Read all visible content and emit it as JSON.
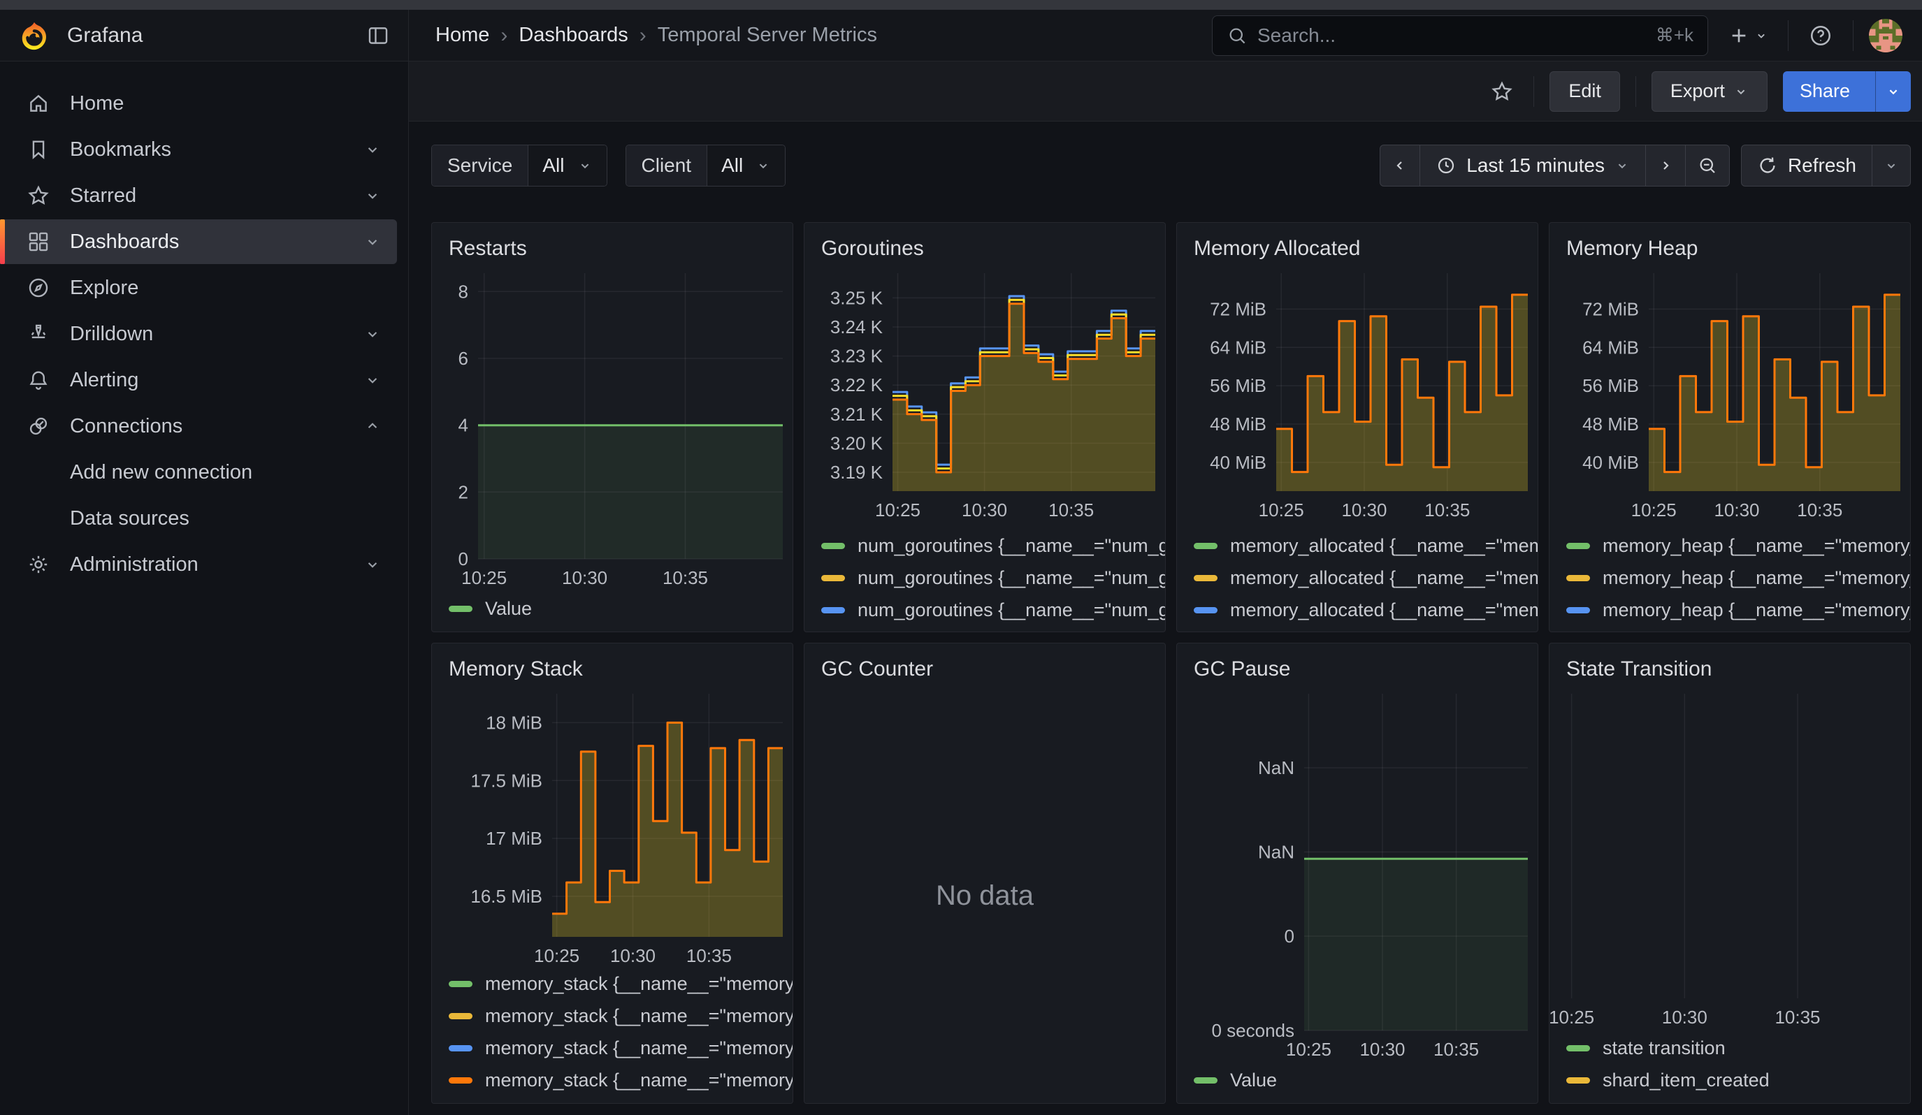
{
  "nav": {
    "brand": "Grafana",
    "breadcrumbs": [
      {
        "label": "Home",
        "current": false
      },
      {
        "label": "Dashboards",
        "current": false
      },
      {
        "label": "Temporal Server Metrics",
        "current": true
      }
    ],
    "search": {
      "placeholder": "Search...",
      "shortcut": "⌘+k"
    }
  },
  "toolbar": {
    "edit": "Edit",
    "export": "Export",
    "share": "Share"
  },
  "sidebar": {
    "items": [
      {
        "label": "Home",
        "icon": "home",
        "chevron": null,
        "active": false,
        "sub": false
      },
      {
        "label": "Bookmarks",
        "icon": "bookmark",
        "chevron": "down",
        "active": false,
        "sub": false
      },
      {
        "label": "Starred",
        "icon": "star",
        "chevron": "down",
        "active": false,
        "sub": false
      },
      {
        "label": "Dashboards",
        "icon": "apps",
        "chevron": "down",
        "active": true,
        "sub": false
      },
      {
        "label": "Explore",
        "icon": "compass",
        "chevron": null,
        "active": false,
        "sub": false
      },
      {
        "label": "Drilldown",
        "icon": "drilldown",
        "chevron": "down",
        "active": false,
        "sub": false
      },
      {
        "label": "Alerting",
        "icon": "bell",
        "chevron": "down",
        "active": false,
        "sub": false
      },
      {
        "label": "Connections",
        "icon": "plug",
        "chevron": "up",
        "active": false,
        "sub": false
      },
      {
        "label": "Add new connection",
        "icon": null,
        "chevron": null,
        "active": false,
        "sub": true
      },
      {
        "label": "Data sources",
        "icon": null,
        "chevron": null,
        "active": false,
        "sub": true
      },
      {
        "label": "Administration",
        "icon": "gear",
        "chevron": "down",
        "active": false,
        "sub": false
      }
    ]
  },
  "controls": {
    "service": {
      "label": "Service",
      "value": "All"
    },
    "client": {
      "label": "Client",
      "value": "All"
    },
    "time_range": "Last 15 minutes",
    "refresh_label": "Refresh"
  },
  "colors": {
    "green": "#73BF69",
    "yellow_line": "#FADE2A",
    "yellow_swatch": "#EAB839",
    "blue": "#5794F2",
    "orange": "#FF780A",
    "primary_blue": "#3D71D9",
    "olive_fill": "rgba(250,222,42,0.26)",
    "green_fill": "rgba(115,191,105,0.10)"
  },
  "chart_data": [
    {
      "id": "restarts",
      "title": "Restarts",
      "type": "flat",
      "flat_value": 4,
      "ylim": [
        0,
        8.55
      ],
      "yticks": [
        {
          "v": 8,
          "l": "8"
        },
        {
          "v": 6,
          "l": "6"
        },
        {
          "v": 4,
          "l": "4"
        },
        {
          "v": 2,
          "l": "2"
        },
        {
          "v": 0,
          "l": "0"
        }
      ],
      "xticks": [
        "10:25",
        "10:30",
        "10:35"
      ],
      "xfracs": [
        0.02,
        0.35,
        0.68
      ],
      "line_color": "#73BF69",
      "fill": "rgba(115,191,105,0.10)",
      "legend": [
        {
          "color": "#73BF69",
          "label": "Value"
        }
      ],
      "legend_clip": false
    },
    {
      "id": "goroutines",
      "title": "Goroutines",
      "type": "step",
      "ylim": [
        3.1835,
        3.2585
      ],
      "yticks": [
        {
          "v": 3.25,
          "l": "3.25 K"
        },
        {
          "v": 3.24,
          "l": "3.24 K"
        },
        {
          "v": 3.23,
          "l": "3.23 K"
        },
        {
          "v": 3.22,
          "l": "3.22 K"
        },
        {
          "v": 3.21,
          "l": "3.21 K"
        },
        {
          "v": 3.2,
          "l": "3.20 K"
        },
        {
          "v": 3.19,
          "l": "3.19 K"
        }
      ],
      "xticks": [
        "10:25",
        "10:30",
        "10:35"
      ],
      "xfracs": [
        0.02,
        0.35,
        0.68
      ],
      "values": [
        3.215,
        3.21,
        3.208,
        3.19,
        3.218,
        3.22,
        3.23,
        3.23,
        3.248,
        3.231,
        3.228,
        3.222,
        3.229,
        3.229,
        3.236,
        3.243,
        3.23,
        3.236
      ],
      "series": [
        {
          "color": "#5794F2",
          "offset": 0.0026
        },
        {
          "color": "#FADE2A",
          "offset": 0.0013
        },
        {
          "color": "#FF780A",
          "offset": 0
        }
      ],
      "fill": "rgba(250,222,42,0.26)",
      "legend": [
        {
          "color": "#73BF69",
          "label": "num_goroutines {__name__=\"num_go"
        },
        {
          "color": "#EAB839",
          "label": "num_goroutines {__name__=\"num_go"
        },
        {
          "color": "#5794F2",
          "label": "num_goroutines {__name__=\"num_go"
        },
        {
          "color": "#FF780A",
          "label": "num_goroutines {__name__=\"num_go"
        }
      ],
      "legend_clip": true
    },
    {
      "id": "memory_allocated",
      "title": "Memory Allocated",
      "type": "step",
      "ylim": [
        34,
        79.5
      ],
      "yticks": [
        {
          "v": 72,
          "l": "72 MiB"
        },
        {
          "v": 64,
          "l": "64 MiB"
        },
        {
          "v": 56,
          "l": "56 MiB"
        },
        {
          "v": 48,
          "l": "48 MiB"
        },
        {
          "v": 40,
          "l": "40 MiB"
        }
      ],
      "xticks": [
        "10:25",
        "10:30",
        "10:35"
      ],
      "xfracs": [
        0.02,
        0.35,
        0.68
      ],
      "values": [
        47,
        38,
        58,
        50.5,
        69.5,
        48.5,
        70.5,
        39.5,
        61.5,
        53.5,
        39,
        61,
        50.5,
        72.5,
        54,
        75
      ],
      "series": [
        {
          "color": "#FF780A",
          "offset": 0
        }
      ],
      "fill": "rgba(250,222,42,0.26)",
      "legend": [
        {
          "color": "#73BF69",
          "label": "memory_allocated {__name__=\"memo"
        },
        {
          "color": "#EAB839",
          "label": "memory_allocated {__name__=\"memo"
        },
        {
          "color": "#5794F2",
          "label": "memory_allocated {__name__=\"memo"
        },
        {
          "color": "#FF780A",
          "label": "memory_allocated {__name__=\"memo"
        }
      ],
      "legend_clip": true
    },
    {
      "id": "memory_heap",
      "title": "Memory Heap",
      "type": "step",
      "ylim": [
        34,
        79.5
      ],
      "yticks": [
        {
          "v": 72,
          "l": "72 MiB"
        },
        {
          "v": 64,
          "l": "64 MiB"
        },
        {
          "v": 56,
          "l": "56 MiB"
        },
        {
          "v": 48,
          "l": "48 MiB"
        },
        {
          "v": 40,
          "l": "40 MiB"
        }
      ],
      "xticks": [
        "10:25",
        "10:30",
        "10:35"
      ],
      "xfracs": [
        0.02,
        0.35,
        0.68
      ],
      "values": [
        47,
        38,
        58,
        50.5,
        69.5,
        48.5,
        70.5,
        39.5,
        61.5,
        53.5,
        39,
        61,
        50.5,
        72.5,
        54,
        75
      ],
      "series": [
        {
          "color": "#FF780A",
          "offset": 0
        }
      ],
      "fill": "rgba(250,222,42,0.26)",
      "legend": [
        {
          "color": "#73BF69",
          "label": "memory_heap {__name__=\"memory_h"
        },
        {
          "color": "#EAB839",
          "label": "memory_heap {__name__=\"memory_h"
        },
        {
          "color": "#5794F2",
          "label": "memory_heap {__name__=\"memory_h"
        },
        {
          "color": "#FF780A",
          "label": "memory_heap {__name__=\"memory_h"
        }
      ],
      "legend_clip": true
    },
    {
      "id": "memory_stack",
      "title": "Memory Stack",
      "type": "step",
      "ylim": [
        16.15,
        18.25
      ],
      "yticks": [
        {
          "v": 18,
          "l": "18 MiB"
        },
        {
          "v": 17.5,
          "l": "17.5 MiB"
        },
        {
          "v": 17,
          "l": "17 MiB"
        },
        {
          "v": 16.5,
          "l": "16.5 MiB"
        }
      ],
      "xticks": [
        "10:25",
        "10:30",
        "10:35"
      ],
      "xfracs": [
        0.02,
        0.35,
        0.68
      ],
      "values": [
        16.35,
        16.62,
        17.75,
        16.45,
        16.72,
        16.62,
        17.8,
        17.15,
        18.0,
        17.05,
        16.62,
        17.78,
        16.9,
        17.85,
        16.8,
        17.78
      ],
      "series": [
        {
          "color": "#FF780A",
          "offset": 0
        }
      ],
      "fill": "rgba(250,222,42,0.26)",
      "legend": [
        {
          "color": "#73BF69",
          "label": "memory_stack {__name__=\"memory_s"
        },
        {
          "color": "#EAB839",
          "label": "memory_stack {__name__=\"memory_s"
        },
        {
          "color": "#5794F2",
          "label": "memory_stack {__name__=\"memory_s"
        },
        {
          "color": "#FF780A",
          "label": "memory_stack {__name__=\"memory_s"
        }
      ],
      "legend_clip": false
    },
    {
      "id": "gc_counter",
      "title": "GC Counter",
      "type": "nodata",
      "no_data_text": "No data",
      "legend": [],
      "legend_clip": false
    },
    {
      "id": "gc_pause",
      "title": "GC Pause",
      "type": "flat-frac",
      "line_frac": 0.49,
      "yticks_frac": [
        {
          "f": 0.22,
          "l": "NaN"
        },
        {
          "f": 0.47,
          "l": "NaN"
        },
        {
          "f": 0.72,
          "l": "0"
        },
        {
          "f": 1.0,
          "l": "0 seconds"
        }
      ],
      "xticks": [
        "10:25",
        "10:30",
        "10:35"
      ],
      "xfracs": [
        0.02,
        0.35,
        0.68
      ],
      "line_color": "#73BF69",
      "fill": "rgba(115,191,105,0.09)",
      "legend": [
        {
          "color": "#73BF69",
          "label": "Value"
        }
      ],
      "legend_clip": false
    },
    {
      "id": "state_transition",
      "title": "State Transition",
      "type": "empty",
      "xticks": [
        "10:25",
        "10:30",
        "10:35"
      ],
      "xfracs": [
        0.04,
        0.37,
        0.7
      ],
      "legend": [
        {
          "color": "#73BF69",
          "label": "state transition"
        },
        {
          "color": "#EAB839",
          "label": "shard_item_created"
        }
      ],
      "legend_clip": false
    }
  ]
}
